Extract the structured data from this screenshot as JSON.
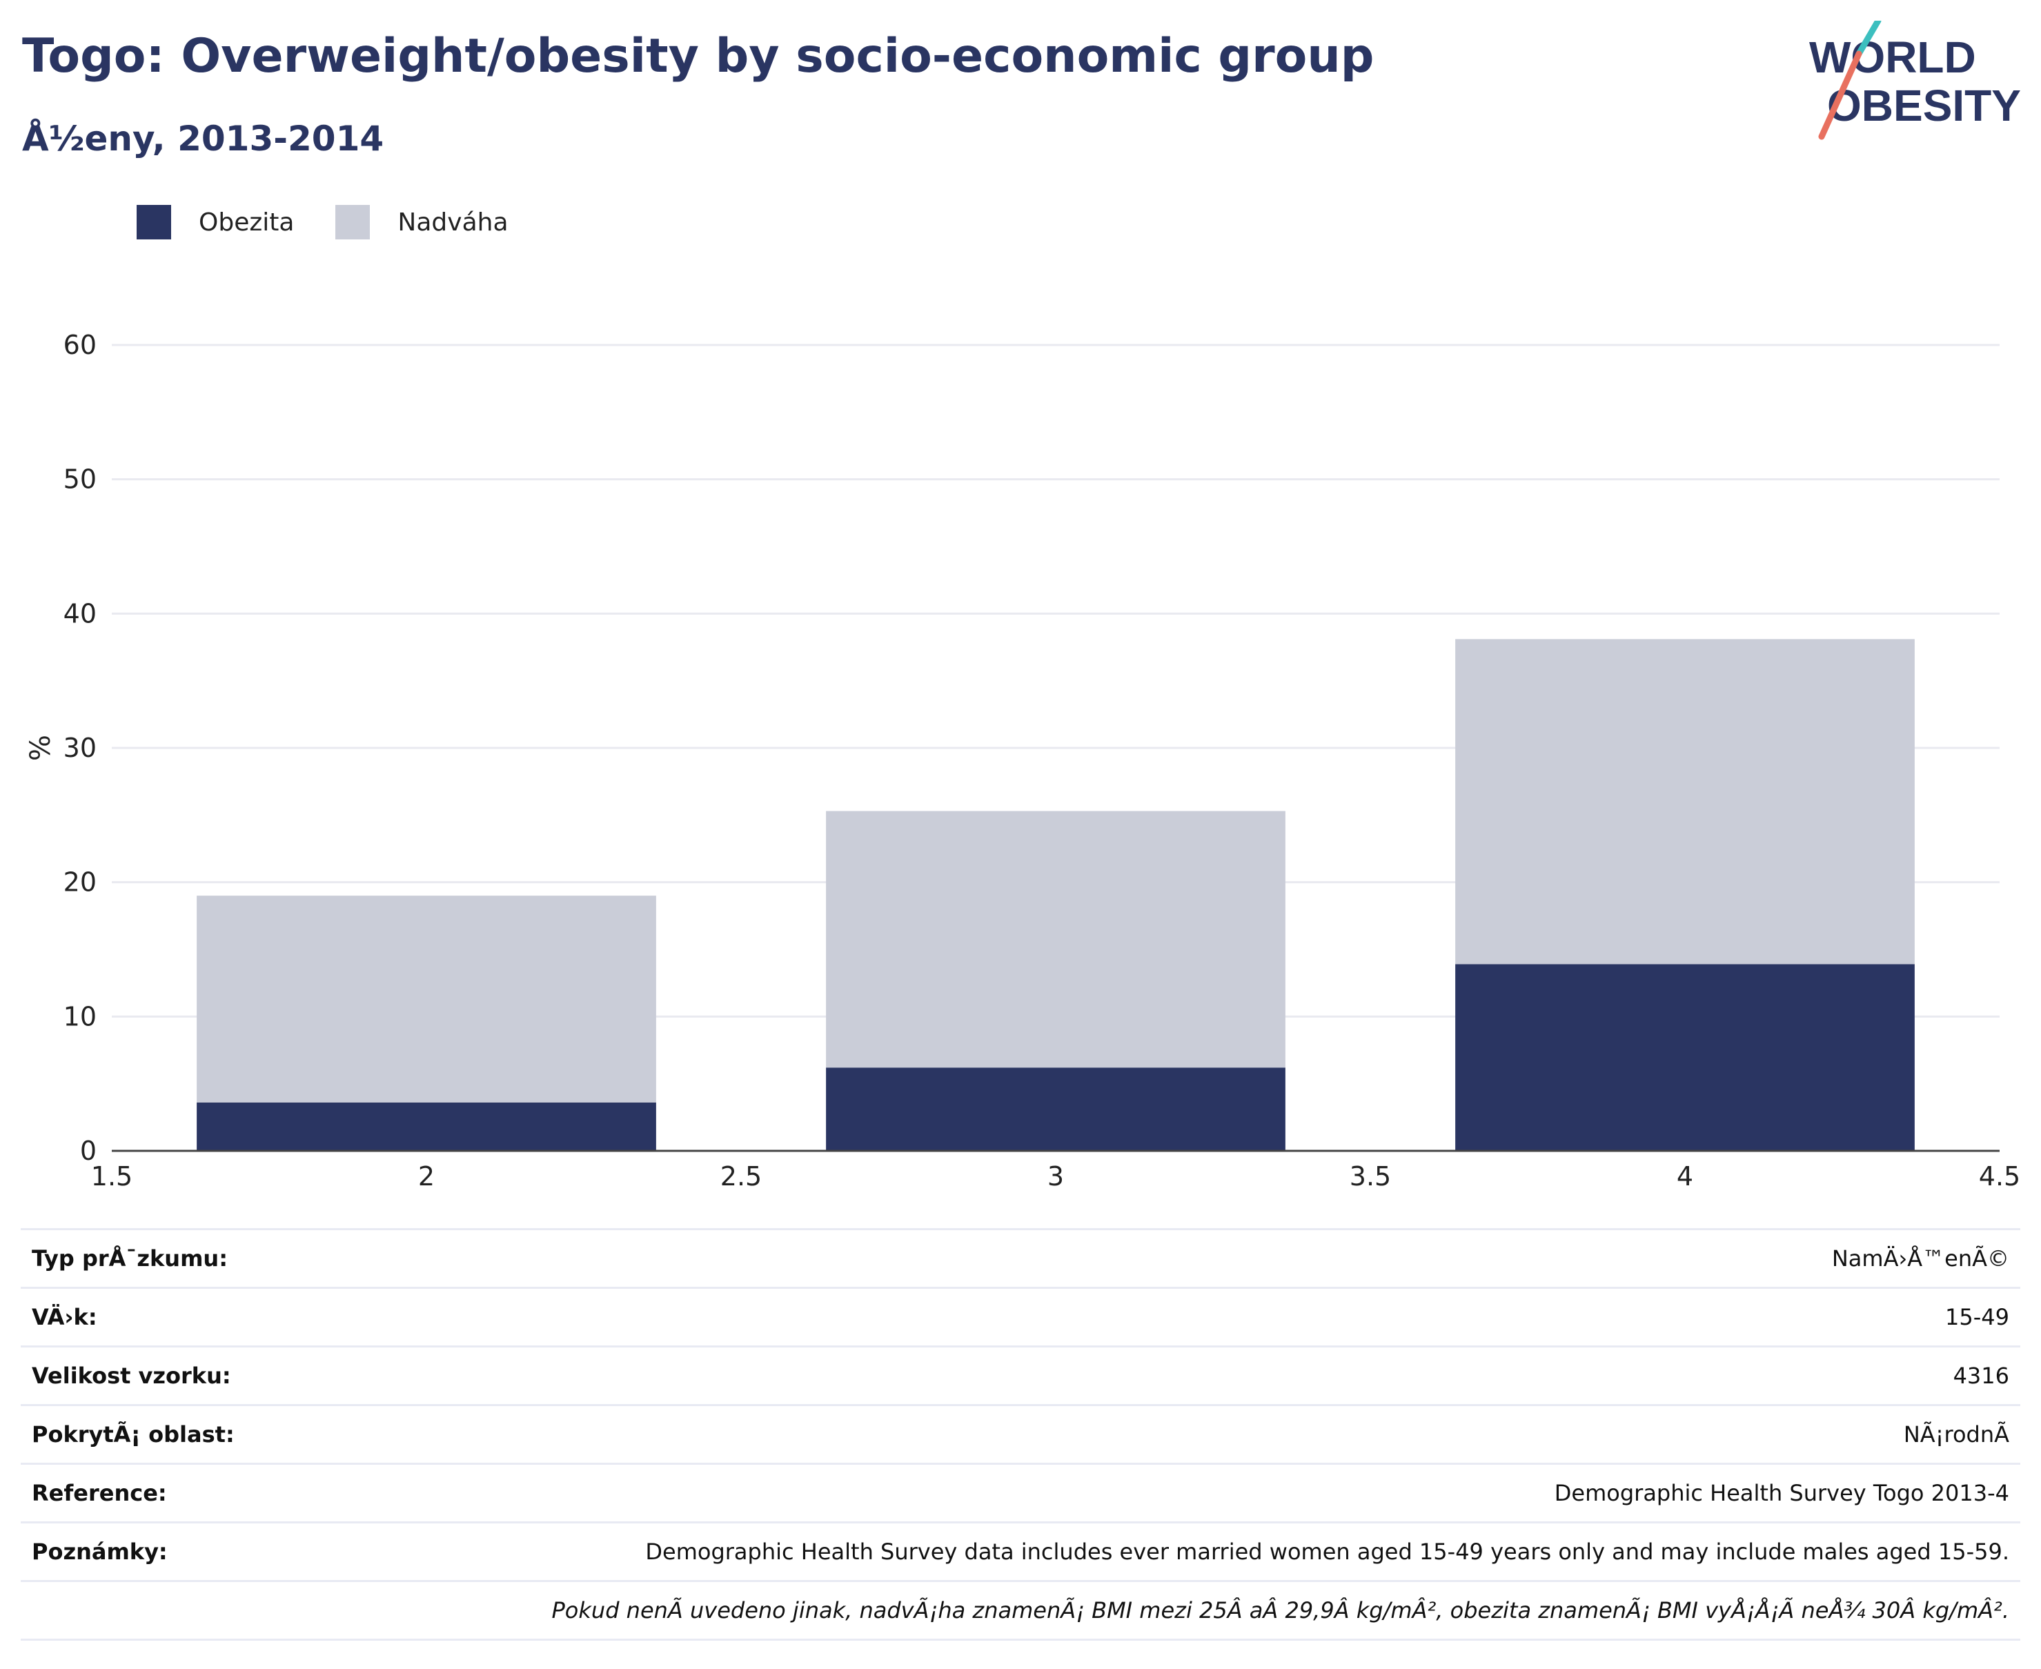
{
  "title": "Togo: Overweight/obesity by socio-economic group",
  "subtitle": "Å½eny, 2013-2014",
  "logo": {
    "line1": "WORLD",
    "line2": "OBESITY",
    "accent_teal": "#3cbfbf",
    "accent_coral": "#e8705f"
  },
  "legend": [
    {
      "label": "Obezita",
      "color": "#2a3562"
    },
    {
      "label": "Nadváha",
      "color": "#cacdd8"
    }
  ],
  "chart_data": {
    "type": "bar",
    "stacked": true,
    "x": [
      2,
      3,
      4
    ],
    "series": [
      {
        "name": "Obezita",
        "color": "#2a3562",
        "values": [
          3.6,
          6.2,
          13.9
        ]
      },
      {
        "name": "Nadváha",
        "color": "#cacdd8",
        "values": [
          15.4,
          19.1,
          24.2
        ]
      }
    ],
    "xlim": [
      1.5,
      4.5
    ],
    "xticks": [
      "1.5",
      "2",
      "2.5",
      "3",
      "3.5",
      "4",
      "4.5"
    ],
    "ylim": [
      0,
      60
    ],
    "yticks": [
      "0",
      "10",
      "20",
      "30",
      "40",
      "50",
      "60"
    ],
    "ylabel": "%",
    "xlabel": "",
    "grid": true,
    "legend_position": "top-left"
  },
  "info_rows": [
    {
      "label": "Typ prÅ¯zkumu:",
      "value": "NamÄ›Å™enÃ©"
    },
    {
      "label": "VÄ›k:",
      "value": "15-49"
    },
    {
      "label": "Velikost vzorku:",
      "value": "4316"
    },
    {
      "label": "PokrytÃ¡ oblast:",
      "value": "NÃ¡rodnÃ"
    },
    {
      "label": "Reference:",
      "value": "Demographic Health Survey Togo 2013-4"
    },
    {
      "label": "Poznámky:",
      "value": "Demographic Health Survey data includes ever married women aged 15-49 years only and may include males aged 15-59."
    }
  ],
  "footnote": "Pokud nenÃ uvedeno jinak, nadvÃ¡ha znamenÃ¡ BMI mezi 25Â aÂ 29,9Â kg/mÂ², obezita znamenÃ¡ BMI vyÅ¡Å¡Ã neÅ¾ 30Â kg/mÂ²."
}
